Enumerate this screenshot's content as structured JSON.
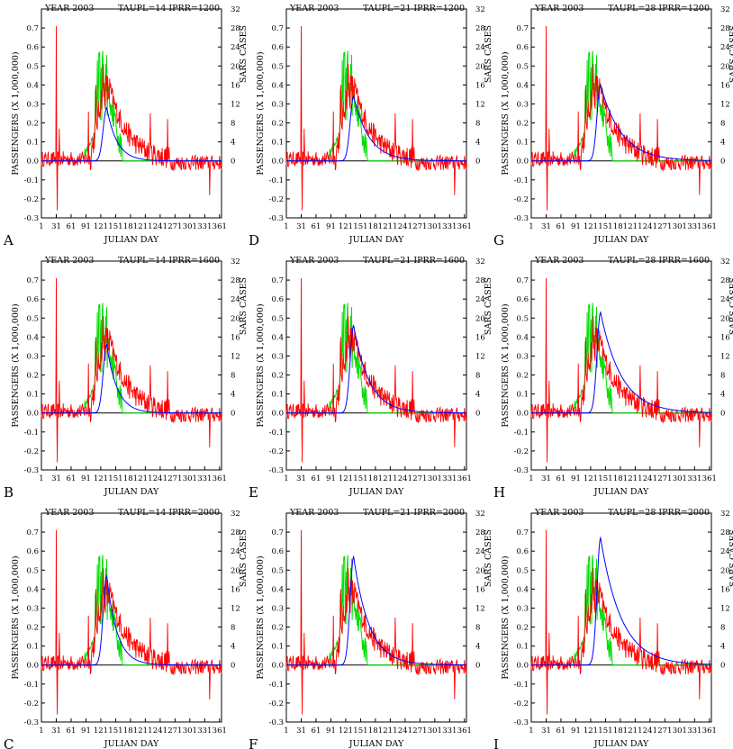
{
  "common": {
    "year_label": "YEAR 2003",
    "xlabel": "JULIAN DAY",
    "ylabel_left": "PASSENGERS (X 1,000,000)",
    "ylabel_right": "SARS CASES",
    "xticks": [
      1,
      31,
      61,
      91,
      121,
      151,
      181,
      211,
      241,
      271,
      301,
      331,
      361
    ],
    "yticks_left": [
      -0.3,
      -0.2,
      -0.1,
      0.0,
      0.1,
      0.2,
      0.3,
      0.4,
      0.5,
      0.6,
      0.7
    ],
    "yticks_right": [
      0,
      4,
      8,
      12,
      16,
      20,
      24,
      28,
      32
    ],
    "xlim": [
      1,
      365
    ],
    "ylim_left": [
      -0.3,
      0.8
    ],
    "ylim_right": [
      -12,
      32
    ],
    "colors": {
      "passengers": "#ff0000",
      "sars": "#00dd00",
      "model": "#0000ff",
      "axis": "#000000"
    }
  },
  "chart_data": [
    {
      "type": "line",
      "panel_letter": "A",
      "params": "TAUPL=14   IPRR=1200",
      "model_peak_day": 133,
      "model_peak_value": 0.28,
      "model_tau": 14
    },
    {
      "type": "line",
      "panel_letter": "B",
      "params": "TAUPL=14   IPRR=1600",
      "model_peak_day": 133,
      "model_peak_value": 0.36,
      "model_tau": 14
    },
    {
      "type": "line",
      "panel_letter": "C",
      "params": "TAUPL=14   IPRR=2000",
      "model_peak_day": 133,
      "model_peak_value": 0.47,
      "model_tau": 14
    },
    {
      "type": "line",
      "panel_letter": "D",
      "params": "TAUPL=21   IPRR=1200",
      "model_peak_day": 137,
      "model_peak_value": 0.34,
      "model_tau": 21
    },
    {
      "type": "line",
      "panel_letter": "E",
      "params": "TAUPL=21   IPRR=1600",
      "model_peak_day": 137,
      "model_peak_value": 0.46,
      "model_tau": 21
    },
    {
      "type": "line",
      "panel_letter": "F",
      "params": "TAUPL=21   IPRR=2000",
      "model_peak_day": 137,
      "model_peak_value": 0.57,
      "model_tau": 21
    },
    {
      "type": "line",
      "panel_letter": "G",
      "params": "TAUPL=28   IPRR=1200",
      "model_peak_day": 141,
      "model_peak_value": 0.4,
      "model_tau": 28
    },
    {
      "type": "line",
      "panel_letter": "H",
      "params": "TAUPL=28   IPRR=1600",
      "model_peak_day": 141,
      "model_peak_value": 0.53,
      "model_tau": 28
    },
    {
      "type": "line",
      "panel_letter": "I",
      "params": "TAUPL=28   IPRR=2000",
      "model_peak_day": 141,
      "model_peak_value": 0.67,
      "model_tau": 28
    }
  ]
}
